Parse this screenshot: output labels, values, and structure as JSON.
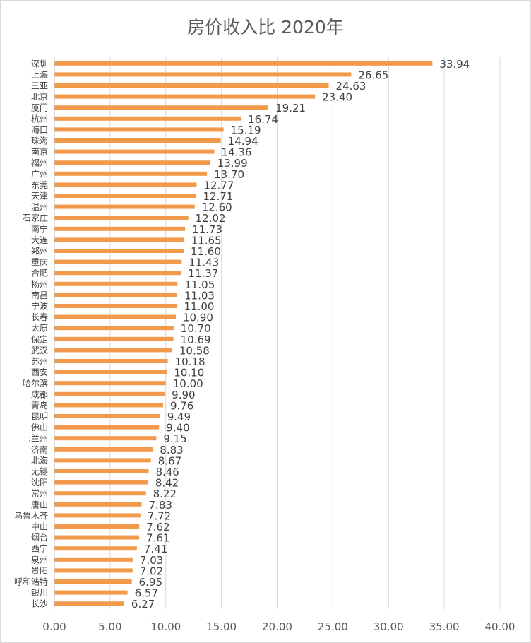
{
  "chart_data": {
    "type": "bar",
    "orientation": "horizontal",
    "title": "房价收入比 2020年",
    "xlabel": "",
    "ylabel": "",
    "xlim": [
      0,
      40
    ],
    "x_ticks": [
      "0.00",
      "5.00",
      "10.00",
      "15.00",
      "20.00",
      "25.00",
      "30.00",
      "35.00",
      "40.00"
    ],
    "grid": "vertical",
    "legend": "none",
    "bar_color": "#f29a4b",
    "categories": [
      "深圳",
      "上海",
      "三亚",
      "北京",
      "厦门",
      "杭州",
      "海口",
      "珠海",
      "南京",
      "福州",
      "广州",
      "东莞",
      "天津",
      "温州",
      "石家庄",
      "南宁",
      "大连",
      "郑州",
      "重庆",
      "合肥",
      "扬州",
      "南昌",
      "宁波",
      "长春",
      "太原",
      "保定",
      "武汉",
      "苏州",
      "西安",
      "哈尔滨",
      "成都",
      "青岛",
      "昆明",
      "佛山",
      ":兰州",
      "济南",
      "北海",
      "无锡",
      "沈阳",
      "常州",
      "唐山",
      "乌鲁木齐",
      "中山",
      "烟台",
      "西宁",
      "泉州",
      "贵阳",
      "呼和浩特",
      "银川",
      "长沙"
    ],
    "values": [
      33.94,
      26.65,
      24.63,
      23.4,
      19.21,
      16.74,
      15.19,
      14.94,
      14.36,
      13.99,
      13.7,
      12.77,
      12.71,
      12.6,
      12.02,
      11.73,
      11.65,
      11.6,
      11.43,
      11.37,
      11.05,
      11.03,
      11.0,
      10.9,
      10.7,
      10.69,
      10.58,
      10.18,
      10.1,
      10.0,
      9.9,
      9.76,
      9.49,
      9.4,
      9.15,
      8.83,
      8.67,
      8.46,
      8.42,
      8.22,
      7.83,
      7.72,
      7.62,
      7.61,
      7.41,
      7.03,
      7.02,
      6.95,
      6.57,
      6.27
    ],
    "value_labels": [
      "33.94",
      "26.65",
      "24.63",
      "23.40",
      "19.21",
      "16.74",
      "15.19",
      "14.94",
      "14.36",
      "13.99",
      "13.70",
      "12.77",
      "12.71",
      "12.60",
      "12.02",
      "11.73",
      "11.65",
      "11.60",
      "11.43",
      "11.37",
      "11.05",
      "11.03",
      "11.00",
      "10.90",
      "10.70",
      "10.69",
      "10.58",
      "10.18",
      "10.10",
      "10.00",
      "9.90",
      "9.76",
      "9.49",
      "9.40",
      "9.15",
      "8.83",
      "8.67",
      "8.46",
      "8.42",
      "8.22",
      "7.83",
      "7.72",
      "7.62",
      "7.61",
      "7.41",
      "7.03",
      "7.02",
      "6.95",
      "6.57",
      "6.27"
    ]
  }
}
